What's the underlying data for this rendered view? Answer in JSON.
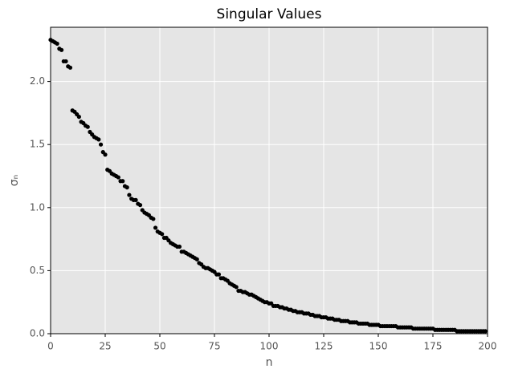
{
  "chart_data": {
    "type": "scatter",
    "title": "Singular Values",
    "xlabel": "n",
    "ylabel": "σₙ",
    "color": "#000000",
    "grid": true,
    "background": "#e5e5e5",
    "xlim": [
      0,
      200
    ],
    "xticks": [
      0,
      25,
      50,
      75,
      100,
      125,
      150,
      175,
      200
    ],
    "ylim": [
      0,
      2.43
    ],
    "yticks": [
      {
        "value": 0,
        "label": "0.0"
      },
      {
        "value": 0.5,
        "label": "0.5"
      },
      {
        "value": 1,
        "label": "1.0"
      },
      {
        "value": 1.5,
        "label": "1.5"
      },
      {
        "value": 2,
        "label": "2.0"
      }
    ],
    "x": [
      0,
      1,
      2,
      3,
      4,
      5,
      6,
      7,
      8,
      9,
      10,
      11,
      12,
      13,
      14,
      15,
      16,
      17,
      18,
      19,
      20,
      21,
      22,
      23,
      24,
      25,
      26,
      27,
      28,
      29,
      30,
      31,
      32,
      33,
      34,
      35,
      36,
      37,
      38,
      39,
      40,
      41,
      42,
      43,
      44,
      45,
      46,
      47,
      48,
      49,
      50,
      51,
      52,
      53,
      54,
      55,
      56,
      57,
      58,
      59,
      60,
      61,
      62,
      63,
      64,
      65,
      66,
      67,
      68,
      69,
      70,
      71,
      72,
      73,
      74,
      75,
      76,
      77,
      78,
      79,
      80,
      81,
      82,
      83,
      84,
      85,
      86,
      87,
      88,
      89,
      90,
      91,
      92,
      93,
      94,
      95,
      96,
      97,
      98,
      99,
      100,
      101,
      102,
      103,
      104,
      105,
      106,
      107,
      108,
      109,
      110,
      111,
      112,
      113,
      114,
      115,
      116,
      117,
      118,
      119,
      120,
      121,
      122,
      123,
      124,
      125,
      126,
      127,
      128,
      129,
      130,
      131,
      132,
      133,
      134,
      135,
      136,
      137,
      138,
      139,
      140,
      141,
      142,
      143,
      144,
      145,
      146,
      147,
      148,
      149,
      150,
      151,
      152,
      153,
      154,
      155,
      156,
      157,
      158,
      159,
      160,
      161,
      162,
      163,
      164,
      165,
      166,
      167,
      168,
      169,
      170,
      171,
      172,
      173,
      174,
      175,
      176,
      177,
      178,
      179,
      180,
      181,
      182,
      183,
      184,
      185,
      186,
      187,
      188,
      189,
      190,
      191,
      192,
      193,
      194,
      195,
      196,
      197,
      198,
      199
    ],
    "values": [
      2.33,
      2.32,
      2.31,
      2.3,
      2.26,
      2.25,
      2.16,
      2.16,
      2.12,
      2.11,
      1.77,
      1.76,
      1.74,
      1.72,
      1.68,
      1.67,
      1.65,
      1.64,
      1.6,
      1.58,
      1.56,
      1.55,
      1.54,
      1.5,
      1.44,
      1.42,
      1.3,
      1.29,
      1.27,
      1.26,
      1.25,
      1.24,
      1.21,
      1.21,
      1.17,
      1.16,
      1.1,
      1.07,
      1.06,
      1.06,
      1.03,
      1.02,
      0.98,
      0.96,
      0.95,
      0.94,
      0.92,
      0.91,
      0.84,
      0.81,
      0.8,
      0.79,
      0.76,
      0.76,
      0.74,
      0.72,
      0.71,
      0.7,
      0.69,
      0.69,
      0.65,
      0.65,
      0.64,
      0.63,
      0.62,
      0.61,
      0.6,
      0.59,
      0.56,
      0.55,
      0.53,
      0.52,
      0.52,
      0.51,
      0.5,
      0.49,
      0.47,
      0.47,
      0.44,
      0.44,
      0.43,
      0.42,
      0.4,
      0.39,
      0.38,
      0.37,
      0.34,
      0.34,
      0.33,
      0.33,
      0.32,
      0.31,
      0.31,
      0.3,
      0.29,
      0.28,
      0.27,
      0.26,
      0.25,
      0.25,
      0.24,
      0.24,
      0.22,
      0.22,
      0.22,
      0.21,
      0.21,
      0.2,
      0.2,
      0.19,
      0.19,
      0.18,
      0.18,
      0.17,
      0.17,
      0.17,
      0.16,
      0.16,
      0.16,
      0.15,
      0.15,
      0.14,
      0.14,
      0.14,
      0.13,
      0.13,
      0.13,
      0.12,
      0.12,
      0.12,
      0.11,
      0.11,
      0.11,
      0.1,
      0.1,
      0.1,
      0.1,
      0.09,
      0.09,
      0.09,
      0.09,
      0.08,
      0.08,
      0.08,
      0.08,
      0.08,
      0.07,
      0.07,
      0.07,
      0.07,
      0.07,
      0.06,
      0.06,
      0.06,
      0.06,
      0.06,
      0.06,
      0.06,
      0.06,
      0.05,
      0.05,
      0.05,
      0.05,
      0.05,
      0.05,
      0.05,
      0.04,
      0.04,
      0.04,
      0.04,
      0.04,
      0.04,
      0.04,
      0.04,
      0.04,
      0.04,
      0.03,
      0.03,
      0.03,
      0.03,
      0.03,
      0.03,
      0.03,
      0.03,
      0.03,
      0.03,
      0.02,
      0.02,
      0.02,
      0.02,
      0.02,
      0.02,
      0.02,
      0.02,
      0.02,
      0.02,
      0.02,
      0.02,
      0.02,
      0.02
    ]
  }
}
